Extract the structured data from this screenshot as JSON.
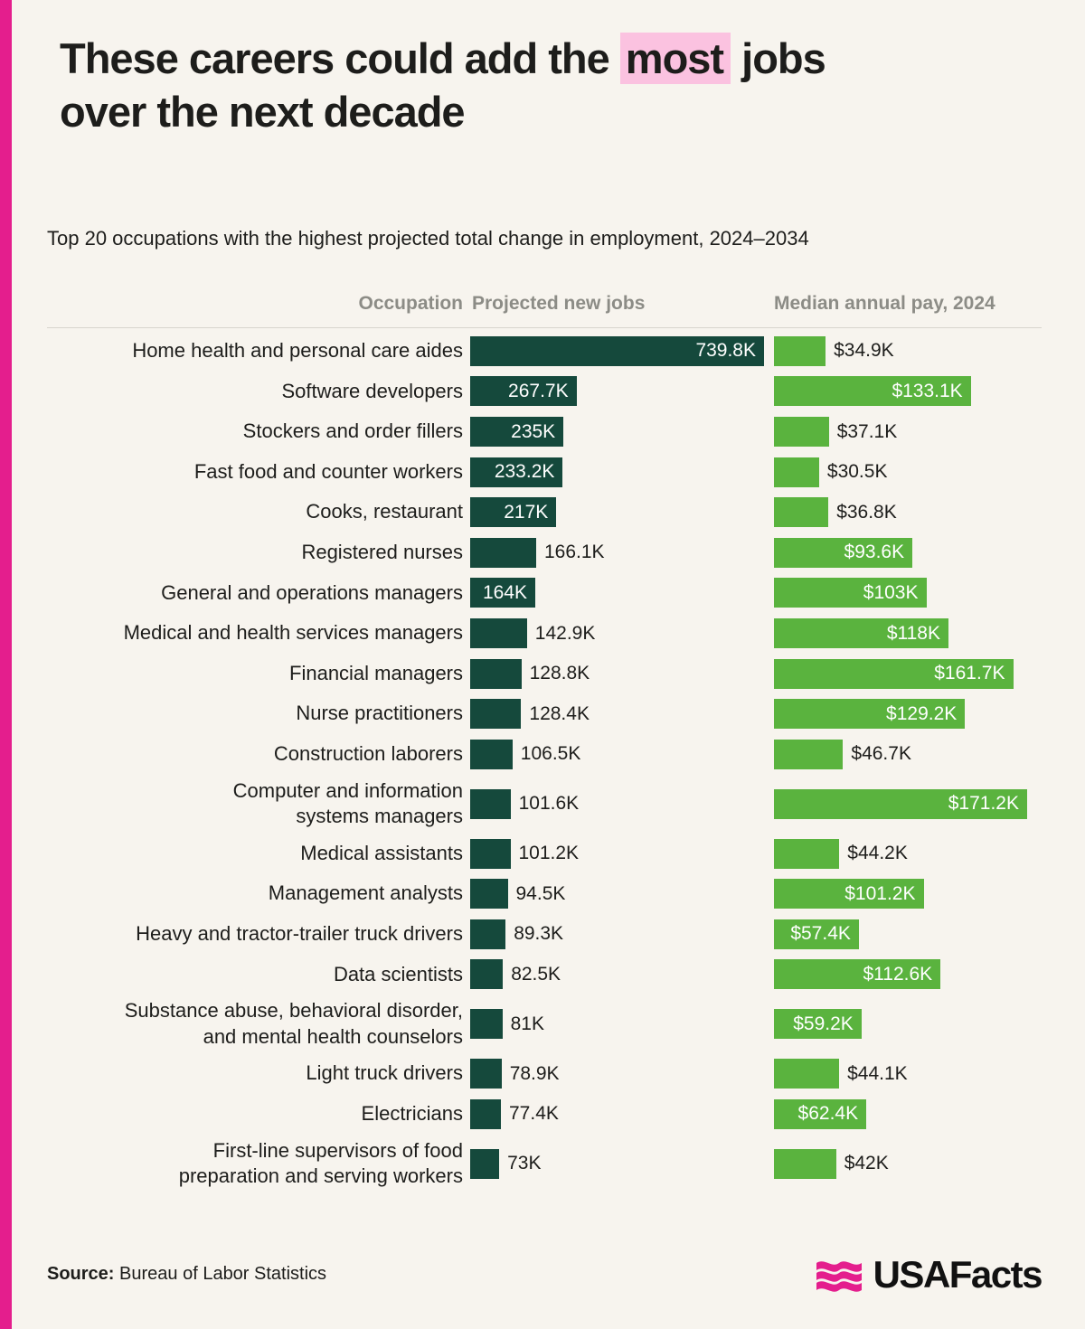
{
  "title": {
    "line1_before": "These careers could add the ",
    "line1_highlight": "most",
    "line1_after": " jobs",
    "line2": "over the next decade"
  },
  "subtitle": "Top 20 occupations with the highest projected total change in employment, 2024–2034",
  "footer": {
    "source_label": "Source:",
    "source_value": "Bureau of Labor Statistics",
    "logo_text": "USAFacts"
  },
  "colors": {
    "accent_pink": "#e41e8d",
    "highlight_pink": "#fbc2e0",
    "jobs_bar": "#15493c",
    "pay_bar": "#5ab33e",
    "background": "#f7f4ee",
    "header_gray": "#8c8c86",
    "text": "#1d1d1b"
  },
  "chart_data": {
    "type": "bar",
    "title": "These careers could add the most jobs over the next decade",
    "subtitle": "Top 20 occupations with the highest projected total change in employment, 2024–2034",
    "columns": [
      "Occupation",
      "Projected new jobs",
      "Median annual pay, 2024"
    ],
    "units": {
      "jobs": "thousands of jobs",
      "pay": "thousands of USD"
    },
    "legend_position": "column headers",
    "grid": false,
    "source": "Bureau of Labor Statistics",
    "rows": [
      {
        "occupation_lines": [
          "Home health and personal care aides"
        ],
        "jobs_k": 739.8,
        "jobs_label": "739.8K",
        "jobs_label_inside": true,
        "pay_k": 34.9,
        "pay_label": "$34.9K",
        "pay_label_inside": false
      },
      {
        "occupation_lines": [
          "Software developers"
        ],
        "jobs_k": 267.7,
        "jobs_label": "267.7K",
        "jobs_label_inside": true,
        "pay_k": 133.1,
        "pay_label": "$133.1K",
        "pay_label_inside": true
      },
      {
        "occupation_lines": [
          "Stockers and order fillers"
        ],
        "jobs_k": 235,
        "jobs_label": "235K",
        "jobs_label_inside": true,
        "pay_k": 37.1,
        "pay_label": "$37.1K",
        "pay_label_inside": false
      },
      {
        "occupation_lines": [
          "Fast food and counter workers"
        ],
        "jobs_k": 233.2,
        "jobs_label": "233.2K",
        "jobs_label_inside": true,
        "pay_k": 30.5,
        "pay_label": "$30.5K",
        "pay_label_inside": false
      },
      {
        "occupation_lines": [
          "Cooks, restaurant"
        ],
        "jobs_k": 217,
        "jobs_label": "217K",
        "jobs_label_inside": true,
        "pay_k": 36.8,
        "pay_label": "$36.8K",
        "pay_label_inside": false
      },
      {
        "occupation_lines": [
          "Registered nurses"
        ],
        "jobs_k": 166.1,
        "jobs_label": "166.1K",
        "jobs_label_inside": false,
        "pay_k": 93.6,
        "pay_label": "$93.6K",
        "pay_label_inside": true
      },
      {
        "occupation_lines": [
          "General and operations managers"
        ],
        "jobs_k": 164,
        "jobs_label": "164K",
        "jobs_label_inside": true,
        "pay_k": 103,
        "pay_label": "$103K",
        "pay_label_inside": true
      },
      {
        "occupation_lines": [
          "Medical and health services managers"
        ],
        "jobs_k": 142.9,
        "jobs_label": "142.9K",
        "jobs_label_inside": false,
        "pay_k": 118,
        "pay_label": "$118K",
        "pay_label_inside": true
      },
      {
        "occupation_lines": [
          "Financial managers"
        ],
        "jobs_k": 128.8,
        "jobs_label": "128.8K",
        "jobs_label_inside": false,
        "pay_k": 161.7,
        "pay_label": "$161.7K",
        "pay_label_inside": true
      },
      {
        "occupation_lines": [
          "Nurse practitioners"
        ],
        "jobs_k": 128.4,
        "jobs_label": "128.4K",
        "jobs_label_inside": false,
        "pay_k": 129.2,
        "pay_label": "$129.2K",
        "pay_label_inside": true
      },
      {
        "occupation_lines": [
          "Construction laborers"
        ],
        "jobs_k": 106.5,
        "jobs_label": "106.5K",
        "jobs_label_inside": false,
        "pay_k": 46.7,
        "pay_label": "$46.7K",
        "pay_label_inside": false
      },
      {
        "occupation_lines": [
          "Computer and information",
          "systems managers"
        ],
        "jobs_k": 101.6,
        "jobs_label": "101.6K",
        "jobs_label_inside": false,
        "pay_k": 171.2,
        "pay_label": "$171.2K",
        "pay_label_inside": true
      },
      {
        "occupation_lines": [
          "Medical assistants"
        ],
        "jobs_k": 101.2,
        "jobs_label": "101.2K",
        "jobs_label_inside": false,
        "pay_k": 44.2,
        "pay_label": "$44.2K",
        "pay_label_inside": false
      },
      {
        "occupation_lines": [
          "Management analysts"
        ],
        "jobs_k": 94.5,
        "jobs_label": "94.5K",
        "jobs_label_inside": false,
        "pay_k": 101.2,
        "pay_label": "$101.2K",
        "pay_label_inside": true
      },
      {
        "occupation_lines": [
          "Heavy and tractor-trailer truck drivers"
        ],
        "jobs_k": 89.3,
        "jobs_label": "89.3K",
        "jobs_label_inside": false,
        "pay_k": 57.4,
        "pay_label": "$57.4K",
        "pay_label_inside": true
      },
      {
        "occupation_lines": [
          "Data scientists"
        ],
        "jobs_k": 82.5,
        "jobs_label": "82.5K",
        "jobs_label_inside": false,
        "pay_k": 112.6,
        "pay_label": "$112.6K",
        "pay_label_inside": true
      },
      {
        "occupation_lines": [
          "Substance abuse, behavioral disorder,",
          "and mental health counselors"
        ],
        "jobs_k": 81,
        "jobs_label": "81K",
        "jobs_label_inside": false,
        "pay_k": 59.2,
        "pay_label": "$59.2K",
        "pay_label_inside": true
      },
      {
        "occupation_lines": [
          "Light truck drivers"
        ],
        "jobs_k": 78.9,
        "jobs_label": "78.9K",
        "jobs_label_inside": false,
        "pay_k": 44.1,
        "pay_label": "$44.1K",
        "pay_label_inside": false
      },
      {
        "occupation_lines": [
          "Electricians"
        ],
        "jobs_k": 77.4,
        "jobs_label": "77.4K",
        "jobs_label_inside": false,
        "pay_k": 62.4,
        "pay_label": "$62.4K",
        "pay_label_inside": true
      },
      {
        "occupation_lines": [
          "First-line supervisors of food",
          "preparation and serving workers"
        ],
        "jobs_k": 73,
        "jobs_label": "73K",
        "jobs_label_inside": false,
        "pay_k": 42,
        "pay_label": "$42K",
        "pay_label_inside": false
      }
    ]
  }
}
